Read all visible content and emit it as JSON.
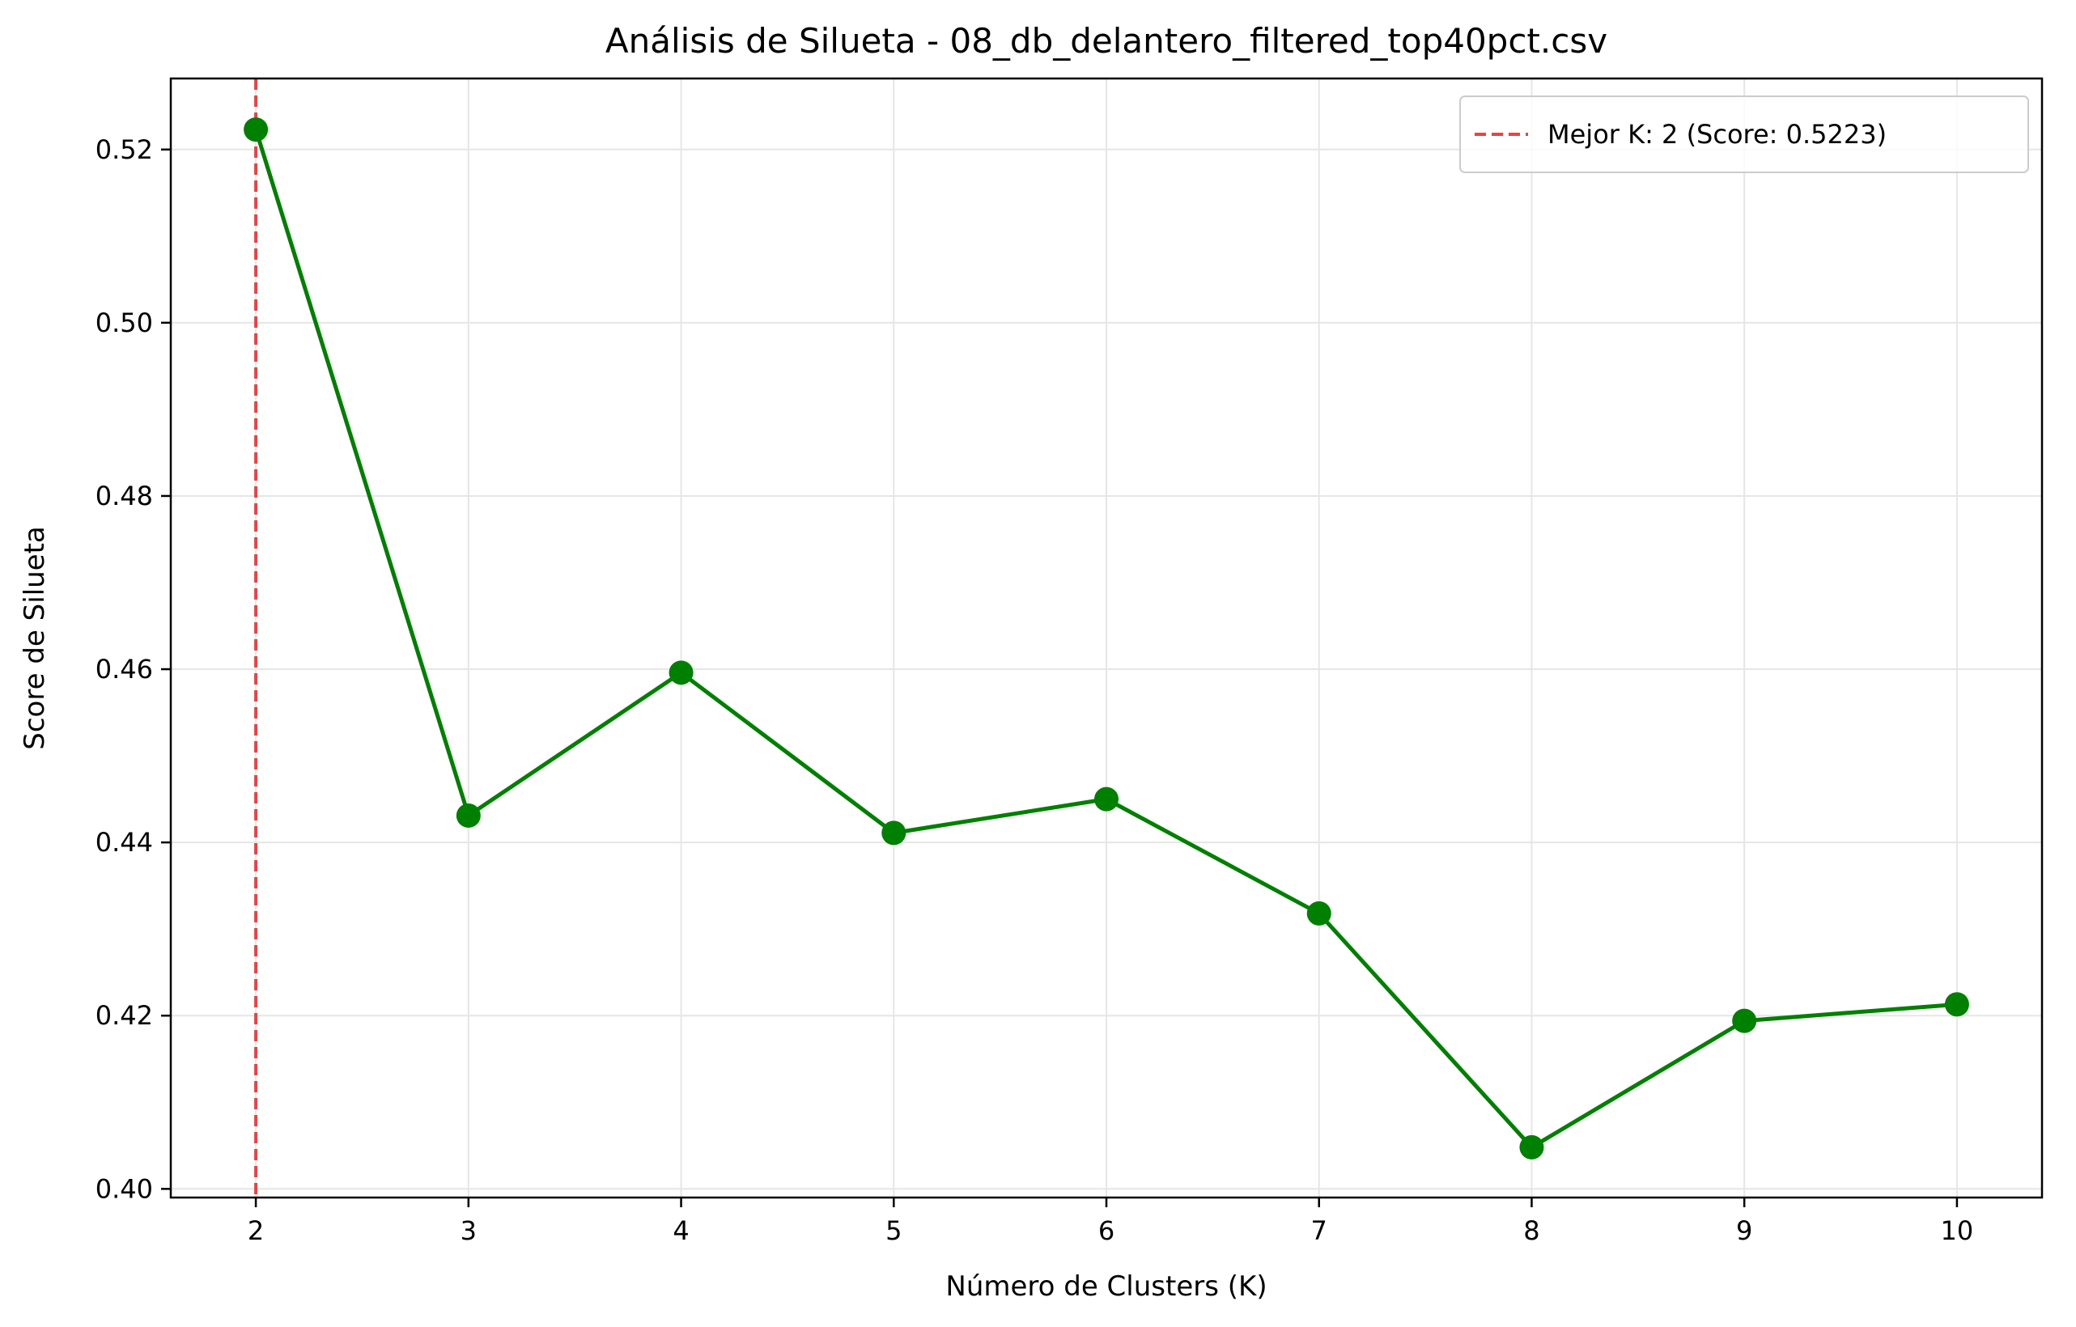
{
  "colors": {
    "line": "#008000",
    "marker": "#008000",
    "best_k_line": "#f04040",
    "grid": "#e6e6e6",
    "axis": "#000000",
    "background": "#ffffff"
  },
  "chart_data": {
    "type": "line",
    "title": "Análisis de Silueta - 08_db_delantero_filtered_top40pct.csv",
    "xlabel": "Número de Clusters (K)",
    "ylabel": "Score de Silueta",
    "x": [
      2,
      3,
      4,
      5,
      6,
      7,
      8,
      9,
      10
    ],
    "series": [
      {
        "values": [
          0.5223,
          0.4431,
          0.4596,
          0.4411,
          0.445,
          0.4318,
          0.4048,
          0.4194,
          0.4213
        ]
      }
    ],
    "xlim": [
      1.6,
      10.4
    ],
    "ylim": [
      0.399,
      0.5282
    ],
    "x_ticks": [
      2,
      3,
      4,
      5,
      6,
      7,
      8,
      9,
      10
    ],
    "x_tick_labels": [
      "2",
      "3",
      "4",
      "5",
      "6",
      "7",
      "8",
      "9",
      "10"
    ],
    "y_ticks": [
      0.4,
      0.42,
      0.44,
      0.46,
      0.48,
      0.5,
      0.52
    ],
    "y_tick_labels": [
      "0.40",
      "0.42",
      "0.44",
      "0.46",
      "0.48",
      "0.50",
      "0.52"
    ],
    "grid": true,
    "best_k": 2,
    "legend": {
      "placement": "top-right",
      "entries": [
        {
          "label": "Mejor K: 2 (Score: 0.5223)",
          "style": "dashed-line"
        }
      ]
    }
  }
}
